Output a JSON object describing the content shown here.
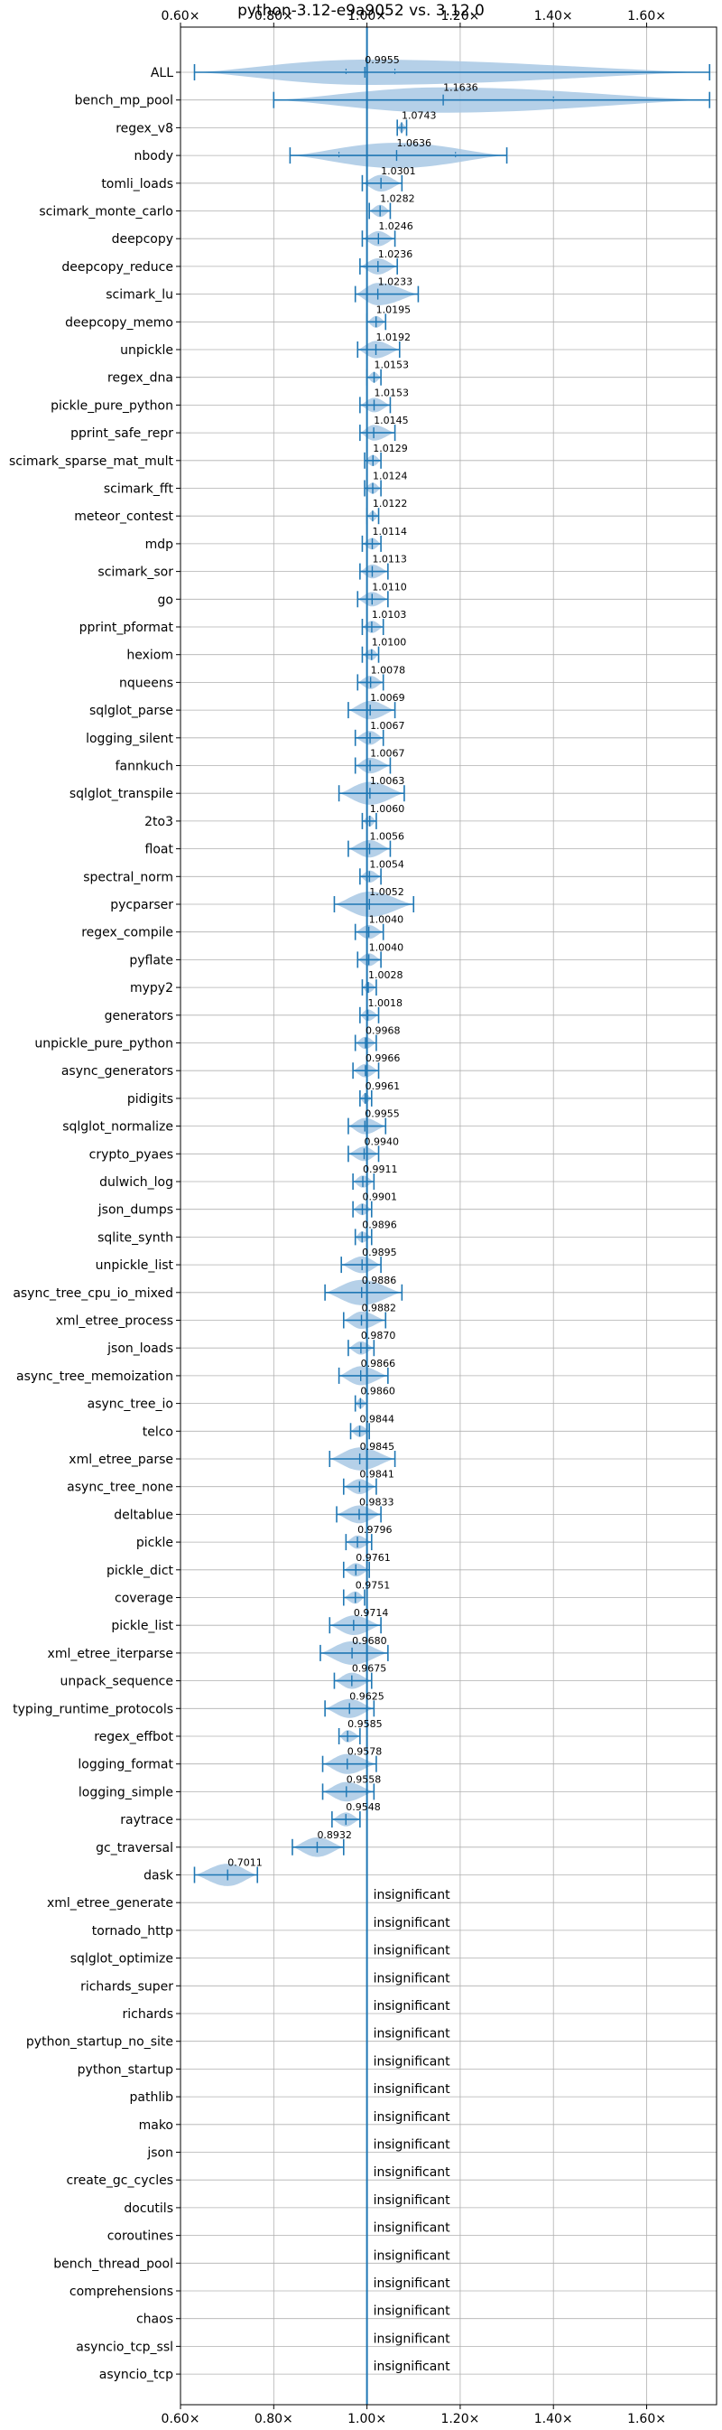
{
  "chart_data": {
    "type": "violin",
    "title": "python-3.12-e9a9052 vs. 3.12.0",
    "xlim": [
      0.6,
      1.75
    ],
    "xticks": [
      0.6,
      0.8,
      1.0,
      1.2,
      1.4,
      1.6
    ],
    "xtick_labels": [
      "0.60×",
      "0.80×",
      "1.00×",
      "1.20×",
      "1.40×",
      "1.60×"
    ],
    "reference_line": 1.0,
    "grid": true,
    "color": "#1f77b4",
    "fill_color": "#a8c8e4",
    "insignificant_text": "insignificant",
    "series": [
      {
        "name": "ALL",
        "value": 0.9955,
        "label": "0.9955",
        "min": 0.63,
        "max": 1.735,
        "q1": 0.955,
        "q3": 1.06
      },
      {
        "name": "bench_mp_pool",
        "value": 1.1636,
        "label": "1.1636",
        "min": 0.8,
        "max": 1.735,
        "q1": 1.0,
        "q3": 1.4
      },
      {
        "name": "regex_v8",
        "value": 1.0743,
        "label": "1.0743",
        "min": 1.065,
        "max": 1.085
      },
      {
        "name": "nbody",
        "value": 1.0636,
        "label": "1.0636",
        "min": 0.835,
        "max": 1.3,
        "q1": 0.94,
        "q3": 1.19
      },
      {
        "name": "tomli_loads",
        "value": 1.0301,
        "label": "1.0301",
        "min": 0.99,
        "max": 1.075
      },
      {
        "name": "scimark_monte_carlo",
        "value": 1.0282,
        "label": "1.0282",
        "min": 1.005,
        "max": 1.05
      },
      {
        "name": "deepcopy",
        "value": 1.0246,
        "label": "1.0246",
        "min": 0.99,
        "max": 1.06
      },
      {
        "name": "deepcopy_reduce",
        "value": 1.0236,
        "label": "1.0236",
        "min": 0.985,
        "max": 1.065
      },
      {
        "name": "scimark_lu",
        "value": 1.0233,
        "label": "1.0233",
        "min": 0.975,
        "max": 1.11
      },
      {
        "name": "deepcopy_memo",
        "value": 1.0195,
        "label": "1.0195",
        "min": 1.0,
        "max": 1.04
      },
      {
        "name": "unpickle",
        "value": 1.0192,
        "label": "1.0192",
        "min": 0.98,
        "max": 1.07
      },
      {
        "name": "regex_dna",
        "value": 1.0153,
        "label": "1.0153",
        "min": 1.0,
        "max": 1.03
      },
      {
        "name": "pickle_pure_python",
        "value": 1.0153,
        "label": "1.0153",
        "min": 0.985,
        "max": 1.05
      },
      {
        "name": "pprint_safe_repr",
        "value": 1.0145,
        "label": "1.0145",
        "min": 0.985,
        "max": 1.06
      },
      {
        "name": "scimark_sparse_mat_mult",
        "value": 1.0129,
        "label": "1.0129",
        "min": 0.995,
        "max": 1.03
      },
      {
        "name": "scimark_fft",
        "value": 1.0124,
        "label": "1.0124",
        "min": 0.995,
        "max": 1.03
      },
      {
        "name": "meteor_contest",
        "value": 1.0122,
        "label": "1.0122",
        "min": 1.0,
        "max": 1.025
      },
      {
        "name": "mdp",
        "value": 1.0114,
        "label": "1.0114",
        "min": 0.99,
        "max": 1.03
      },
      {
        "name": "scimark_sor",
        "value": 1.0113,
        "label": "1.0113",
        "min": 0.985,
        "max": 1.045
      },
      {
        "name": "go",
        "value": 1.011,
        "label": "1.0110",
        "min": 0.98,
        "max": 1.045
      },
      {
        "name": "pprint_pformat",
        "value": 1.0103,
        "label": "1.0103",
        "min": 0.99,
        "max": 1.035
      },
      {
        "name": "hexiom",
        "value": 1.01,
        "label": "1.0100",
        "min": 0.99,
        "max": 1.025
      },
      {
        "name": "nqueens",
        "value": 1.0078,
        "label": "1.0078",
        "min": 0.98,
        "max": 1.035
      },
      {
        "name": "sqlglot_parse",
        "value": 1.0069,
        "label": "1.0069",
        "min": 0.96,
        "max": 1.06
      },
      {
        "name": "logging_silent",
        "value": 1.0067,
        "label": "1.0067",
        "min": 0.975,
        "max": 1.035
      },
      {
        "name": "fannkuch",
        "value": 1.0067,
        "label": "1.0067",
        "min": 0.975,
        "max": 1.05
      },
      {
        "name": "sqlglot_transpile",
        "value": 1.0063,
        "label": "1.0063",
        "min": 0.94,
        "max": 1.08
      },
      {
        "name": "2to3",
        "value": 1.006,
        "label": "1.0060",
        "min": 0.99,
        "max": 1.02
      },
      {
        "name": "float",
        "value": 1.0056,
        "label": "1.0056",
        "min": 0.96,
        "max": 1.05
      },
      {
        "name": "spectral_norm",
        "value": 1.0054,
        "label": "1.0054",
        "min": 0.985,
        "max": 1.03
      },
      {
        "name": "pycparser",
        "value": 1.0052,
        "label": "1.0052",
        "min": 0.93,
        "max": 1.1
      },
      {
        "name": "regex_compile",
        "value": 1.004,
        "label": "1.0040",
        "min": 0.975,
        "max": 1.035
      },
      {
        "name": "pyflate",
        "value": 1.004,
        "label": "1.0040",
        "min": 0.98,
        "max": 1.03
      },
      {
        "name": "mypy2",
        "value": 1.0028,
        "label": "1.0028",
        "min": 0.99,
        "max": 1.02
      },
      {
        "name": "generators",
        "value": 1.0018,
        "label": "1.0018",
        "min": 0.985,
        "max": 1.025
      },
      {
        "name": "unpickle_pure_python",
        "value": 0.9968,
        "label": "0.9968",
        "min": 0.975,
        "max": 1.02
      },
      {
        "name": "async_generators",
        "value": 0.9966,
        "label": "0.9966",
        "min": 0.97,
        "max": 1.025
      },
      {
        "name": "pidigits",
        "value": 0.9961,
        "label": "0.9961",
        "min": 0.985,
        "max": 1.01
      },
      {
        "name": "sqlglot_normalize",
        "value": 0.9955,
        "label": "0.9955",
        "min": 0.96,
        "max": 1.04
      },
      {
        "name": "crypto_pyaes",
        "value": 0.994,
        "label": "0.9940",
        "min": 0.96,
        "max": 1.025
      },
      {
        "name": "dulwich_log",
        "value": 0.9911,
        "label": "0.9911",
        "min": 0.97,
        "max": 1.015
      },
      {
        "name": "json_dumps",
        "value": 0.9901,
        "label": "0.9901",
        "min": 0.97,
        "max": 1.01
      },
      {
        "name": "sqlite_synth",
        "value": 0.9896,
        "label": "0.9896",
        "min": 0.975,
        "max": 1.01
      },
      {
        "name": "unpickle_list",
        "value": 0.9895,
        "label": "0.9895",
        "min": 0.945,
        "max": 1.03
      },
      {
        "name": "async_tree_cpu_io_mixed",
        "value": 0.9886,
        "label": "0.9886",
        "min": 0.91,
        "max": 1.075
      },
      {
        "name": "xml_etree_process",
        "value": 0.9882,
        "label": "0.9882",
        "min": 0.95,
        "max": 1.04
      },
      {
        "name": "json_loads",
        "value": 0.987,
        "label": "0.9870",
        "min": 0.96,
        "max": 1.015
      },
      {
        "name": "async_tree_memoization",
        "value": 0.9866,
        "label": "0.9866",
        "min": 0.94,
        "max": 1.045
      },
      {
        "name": "async_tree_io",
        "value": 0.986,
        "label": "0.9860",
        "min": 0.975,
        "max": 1.0
      },
      {
        "name": "telco",
        "value": 0.9844,
        "label": "0.9844",
        "min": 0.965,
        "max": 1.005
      },
      {
        "name": "xml_etree_parse",
        "value": 0.9845,
        "label": "0.9845",
        "min": 0.92,
        "max": 1.06
      },
      {
        "name": "async_tree_none",
        "value": 0.9841,
        "label": "0.9841",
        "min": 0.95,
        "max": 1.02
      },
      {
        "name": "deltablue",
        "value": 0.9833,
        "label": "0.9833",
        "min": 0.935,
        "max": 1.03
      },
      {
        "name": "pickle",
        "value": 0.9796,
        "label": "0.9796",
        "min": 0.955,
        "max": 1.01
      },
      {
        "name": "pickle_dict",
        "value": 0.9761,
        "label": "0.9761",
        "min": 0.95,
        "max": 1.005
      },
      {
        "name": "coverage",
        "value": 0.9751,
        "label": "0.9751",
        "min": 0.95,
        "max": 0.995
      },
      {
        "name": "pickle_list",
        "value": 0.9714,
        "label": "0.9714",
        "min": 0.92,
        "max": 1.03
      },
      {
        "name": "xml_etree_iterparse",
        "value": 0.968,
        "label": "0.9680",
        "min": 0.9,
        "max": 1.045
      },
      {
        "name": "unpack_sequence",
        "value": 0.9675,
        "label": "0.9675",
        "min": 0.93,
        "max": 1.01
      },
      {
        "name": "typing_runtime_protocols",
        "value": 0.9625,
        "label": "0.9625",
        "min": 0.91,
        "max": 1.015
      },
      {
        "name": "regex_effbot",
        "value": 0.9585,
        "label": "0.9585",
        "min": 0.94,
        "max": 0.985
      },
      {
        "name": "logging_format",
        "value": 0.9578,
        "label": "0.9578",
        "min": 0.905,
        "max": 1.02
      },
      {
        "name": "logging_simple",
        "value": 0.9558,
        "label": "0.9558",
        "min": 0.905,
        "max": 1.015
      },
      {
        "name": "raytrace",
        "value": 0.9548,
        "label": "0.9548",
        "min": 0.925,
        "max": 0.985
      },
      {
        "name": "gc_traversal",
        "value": 0.8932,
        "label": "0.8932",
        "min": 0.84,
        "max": 0.95
      },
      {
        "name": "dask",
        "value": 0.7011,
        "label": "0.7011",
        "min": 0.63,
        "max": 0.765
      },
      {
        "name": "xml_etree_generate",
        "insignificant": true
      },
      {
        "name": "tornado_http",
        "insignificant": true
      },
      {
        "name": "sqlglot_optimize",
        "insignificant": true
      },
      {
        "name": "richards_super",
        "insignificant": true
      },
      {
        "name": "richards",
        "insignificant": true
      },
      {
        "name": "python_startup_no_site",
        "insignificant": true
      },
      {
        "name": "python_startup",
        "insignificant": true
      },
      {
        "name": "pathlib",
        "insignificant": true
      },
      {
        "name": "mako",
        "insignificant": true
      },
      {
        "name": "json",
        "insignificant": true
      },
      {
        "name": "create_gc_cycles",
        "insignificant": true
      },
      {
        "name": "docutils",
        "insignificant": true
      },
      {
        "name": "coroutines",
        "insignificant": true
      },
      {
        "name": "bench_thread_pool",
        "insignificant": true
      },
      {
        "name": "comprehensions",
        "insignificant": true
      },
      {
        "name": "chaos",
        "insignificant": true
      },
      {
        "name": "asyncio_tcp_ssl",
        "insignificant": true
      },
      {
        "name": "asyncio_tcp",
        "insignificant": true
      }
    ]
  }
}
